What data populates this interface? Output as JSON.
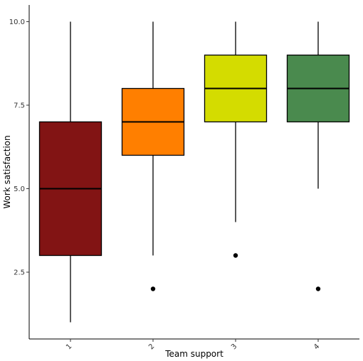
{
  "chart_data": {
    "type": "boxplot",
    "xlabel": "Team support",
    "ylabel": "Work satisfaction",
    "y_ticks": [
      "2.5",
      "5.0",
      "7.5",
      "10.0"
    ],
    "y_tick_values": [
      2.5,
      5.0,
      7.5,
      10.0
    ],
    "ylim": [
      0.5,
      10.5
    ],
    "categories": [
      "1",
      "2",
      "3",
      "4"
    ],
    "boxes": [
      {
        "category": "1",
        "min": 1,
        "q1": 3,
        "median": 5,
        "q3": 7,
        "max": 10,
        "outliers": [],
        "color": "#821414"
      },
      {
        "category": "2",
        "min": 3,
        "q1": 6,
        "median": 7,
        "q3": 8,
        "max": 10,
        "outliers": [
          2
        ],
        "color": "#FF7F00"
      },
      {
        "category": "3",
        "min": 4,
        "q1": 7,
        "median": 8,
        "q3": 9,
        "max": 10,
        "outliers": [
          3
        ],
        "color": "#D4DC00"
      },
      {
        "category": "4",
        "min": 5,
        "q1": 7,
        "median": 8,
        "q3": 9,
        "max": 10,
        "outliers": [
          2
        ],
        "color": "#4A8A4E"
      }
    ],
    "grid": false,
    "legend": "none"
  }
}
